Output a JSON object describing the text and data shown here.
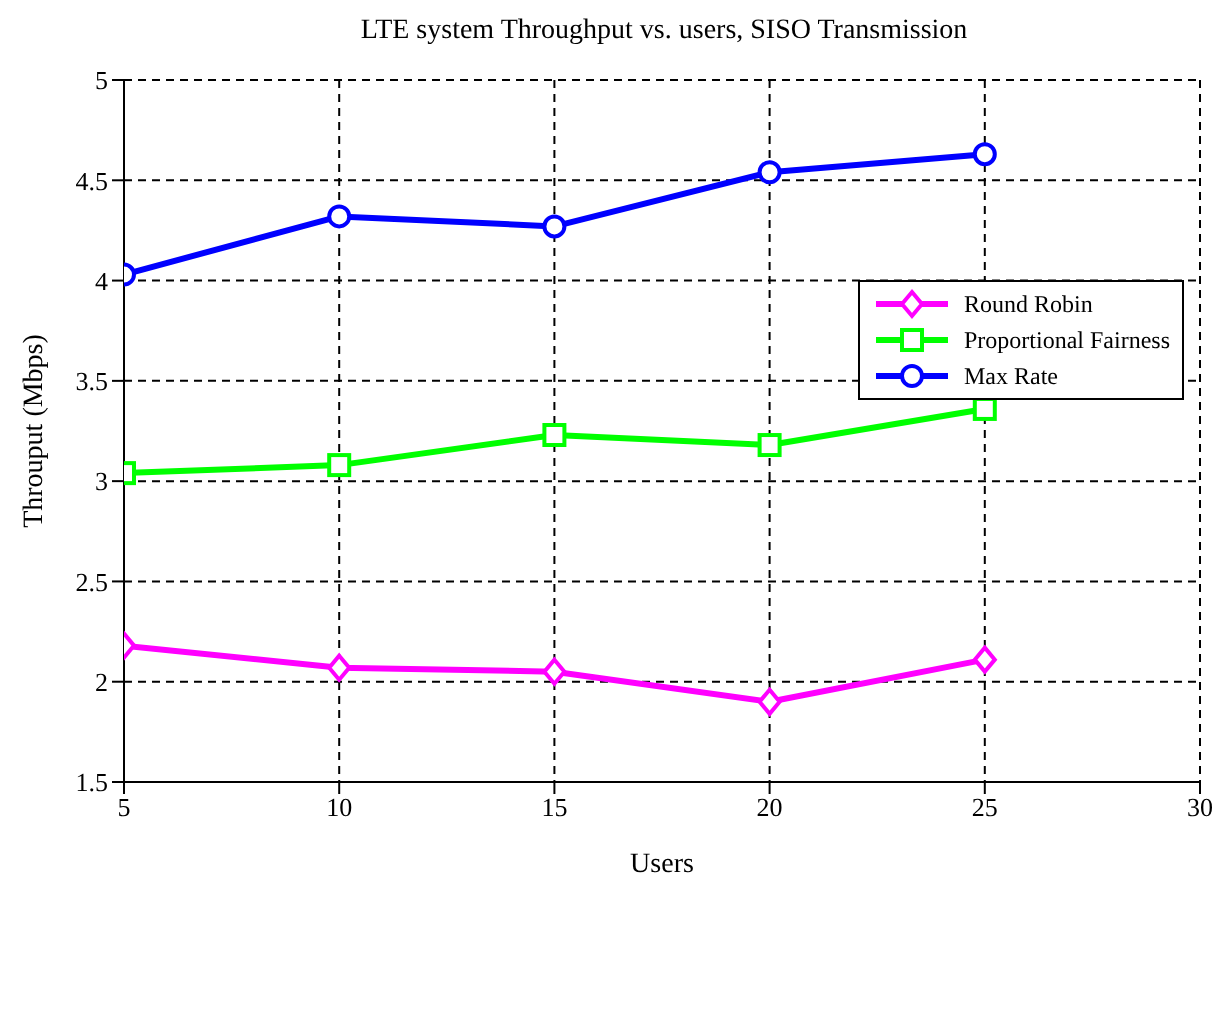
{
  "chart_data": {
    "type": "line",
    "title": "LTE system Throughput vs. users, SISO Transmission",
    "xlabel": "Users",
    "ylabel": "Throuput (Mbps)",
    "x": [
      5,
      10,
      15,
      20,
      25
    ],
    "series": [
      {
        "name": "Round Robin",
        "color": "#ff00ff",
        "marker": "diamond",
        "values": [
          2.18,
          2.07,
          2.05,
          1.9,
          2.11
        ]
      },
      {
        "name": "Proportional Fairness",
        "color": "#00ff00",
        "marker": "square",
        "values": [
          3.04,
          3.08,
          3.23,
          3.18,
          3.36
        ]
      },
      {
        "name": "Max Rate",
        "color": "#0000ff",
        "marker": "circle",
        "values": [
          4.03,
          4.32,
          4.27,
          4.54,
          4.63
        ]
      }
    ],
    "xlim": [
      5,
      30
    ],
    "xticks": [
      5,
      10,
      15,
      20,
      25,
      30
    ],
    "ylim": [
      1.5,
      5
    ],
    "yticks": [
      1.5,
      2,
      2.5,
      3,
      3.5,
      4,
      4.5,
      5
    ],
    "grid": true,
    "legend": "top right",
    "line_style": "solid"
  }
}
